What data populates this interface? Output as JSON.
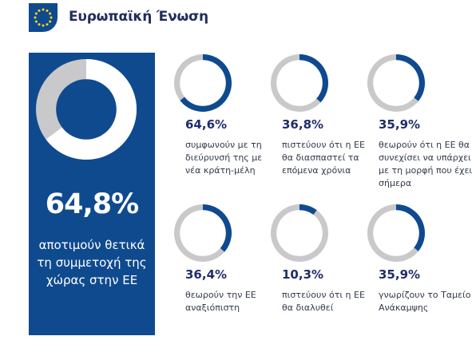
{
  "header": {
    "title": "Ευρωπαϊκή Ένωση",
    "logo_icon": "eu-flag-icon"
  },
  "colors": {
    "accent": "#0f4a8f",
    "grey": "#c9c9cb",
    "text_dark": "#1f2d6a"
  },
  "chart_data": [
    {
      "type": "pie",
      "variant": "donut",
      "value": 64.8,
      "value_label": "64,8%",
      "description": "αποτιμούν θετικά τη συμμετοχή της χώρας στην ΕΕ"
    },
    {
      "type": "pie",
      "variant": "donut",
      "value": 64.6,
      "value_label": "64,6%",
      "description": "συμφωνούν με τη διεύρυνσή της με νέα κράτη-μέλη"
    },
    {
      "type": "pie",
      "variant": "donut",
      "value": 36.8,
      "value_label": "36,8%",
      "description": "πιστεύουν ότι η ΕΕ θα διασπαστεί τα επόμενα χρόνια"
    },
    {
      "type": "pie",
      "variant": "donut",
      "value": 35.9,
      "value_label": "35,9%",
      "description": "θεωρούν ότι η ΕΕ θα συνεχίσει να υπάρχει με τη μορφή που έχει σήμερα"
    },
    {
      "type": "pie",
      "variant": "donut",
      "value": 36.4,
      "value_label": "36,4%",
      "description": "θεωρούν την ΕΕ αναξιόπιστη"
    },
    {
      "type": "pie",
      "variant": "donut",
      "value": 10.3,
      "value_label": "10,3%",
      "description": "πιστεύουν ότι η ΕΕ θα διαλυθεί"
    },
    {
      "type": "pie",
      "variant": "donut",
      "value": 35.9,
      "value_label": "35,9%",
      "description": "γνωρίζουν το Ταμείο Ανάκαμψης"
    }
  ]
}
